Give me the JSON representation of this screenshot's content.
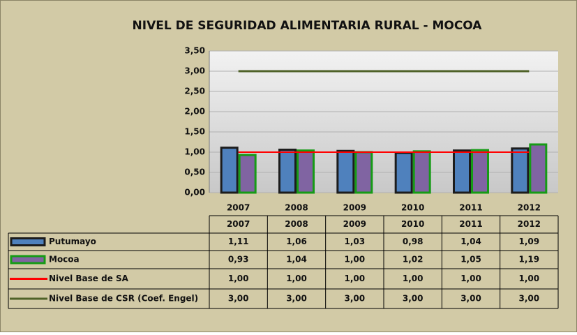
{
  "chart_data": {
    "type": "bar",
    "title": "NIVEL DE SEGURIDAD ALIMENTARIA RURAL - MOCOA",
    "categories": [
      "2007",
      "2008",
      "2009",
      "2010",
      "2011",
      "2012"
    ],
    "series": [
      {
        "name": "Putumayo",
        "type": "bar",
        "color": "#4f81bd",
        "edge_color": "#1c1c1c",
        "values": [
          1.11,
          1.06,
          1.03,
          0.98,
          1.04,
          1.09
        ],
        "value_labels": [
          "1,11",
          "1,06",
          "1,03",
          "0,98",
          "1,04",
          "1,09"
        ]
      },
      {
        "name": "Mocoa",
        "type": "bar",
        "color": "#8064a2",
        "edge_color": "#169b16",
        "values": [
          0.93,
          1.04,
          1.0,
          1.02,
          1.05,
          1.19
        ],
        "value_labels": [
          "0,93",
          "1,04",
          "1,00",
          "1,02",
          "1,05",
          "1,19"
        ]
      },
      {
        "name": "Nivel Base de SA",
        "type": "line",
        "color": "#ff0000",
        "values": [
          1,
          1,
          1,
          1,
          1,
          1
        ],
        "value_labels": [
          "1,00",
          "1,00",
          "1,00",
          "1,00",
          "1,00",
          "1,00"
        ]
      },
      {
        "name": "Nivel Base de CSR (Coef. Engel)",
        "type": "line",
        "color": "#4f6228",
        "values": [
          3,
          3,
          3,
          3,
          3,
          3
        ],
        "value_labels": [
          "3,00",
          "3,00",
          "3,00",
          "3,00",
          "3,00",
          "3,00"
        ]
      }
    ],
    "ylim": [
      0,
      3.5
    ],
    "yticks": [
      {
        "value": 0,
        "label": "0,00"
      },
      {
        "value": 0.5,
        "label": "0,50"
      },
      {
        "value": 1,
        "label": "1,00"
      },
      {
        "value": 1.5,
        "label": "1,50"
      },
      {
        "value": 2,
        "label": "2,00"
      },
      {
        "value": 2.5,
        "label": "2,50"
      },
      {
        "value": 3,
        "label": "3,00"
      },
      {
        "value": 3.5,
        "label": "3,50"
      }
    ],
    "grid": true
  }
}
